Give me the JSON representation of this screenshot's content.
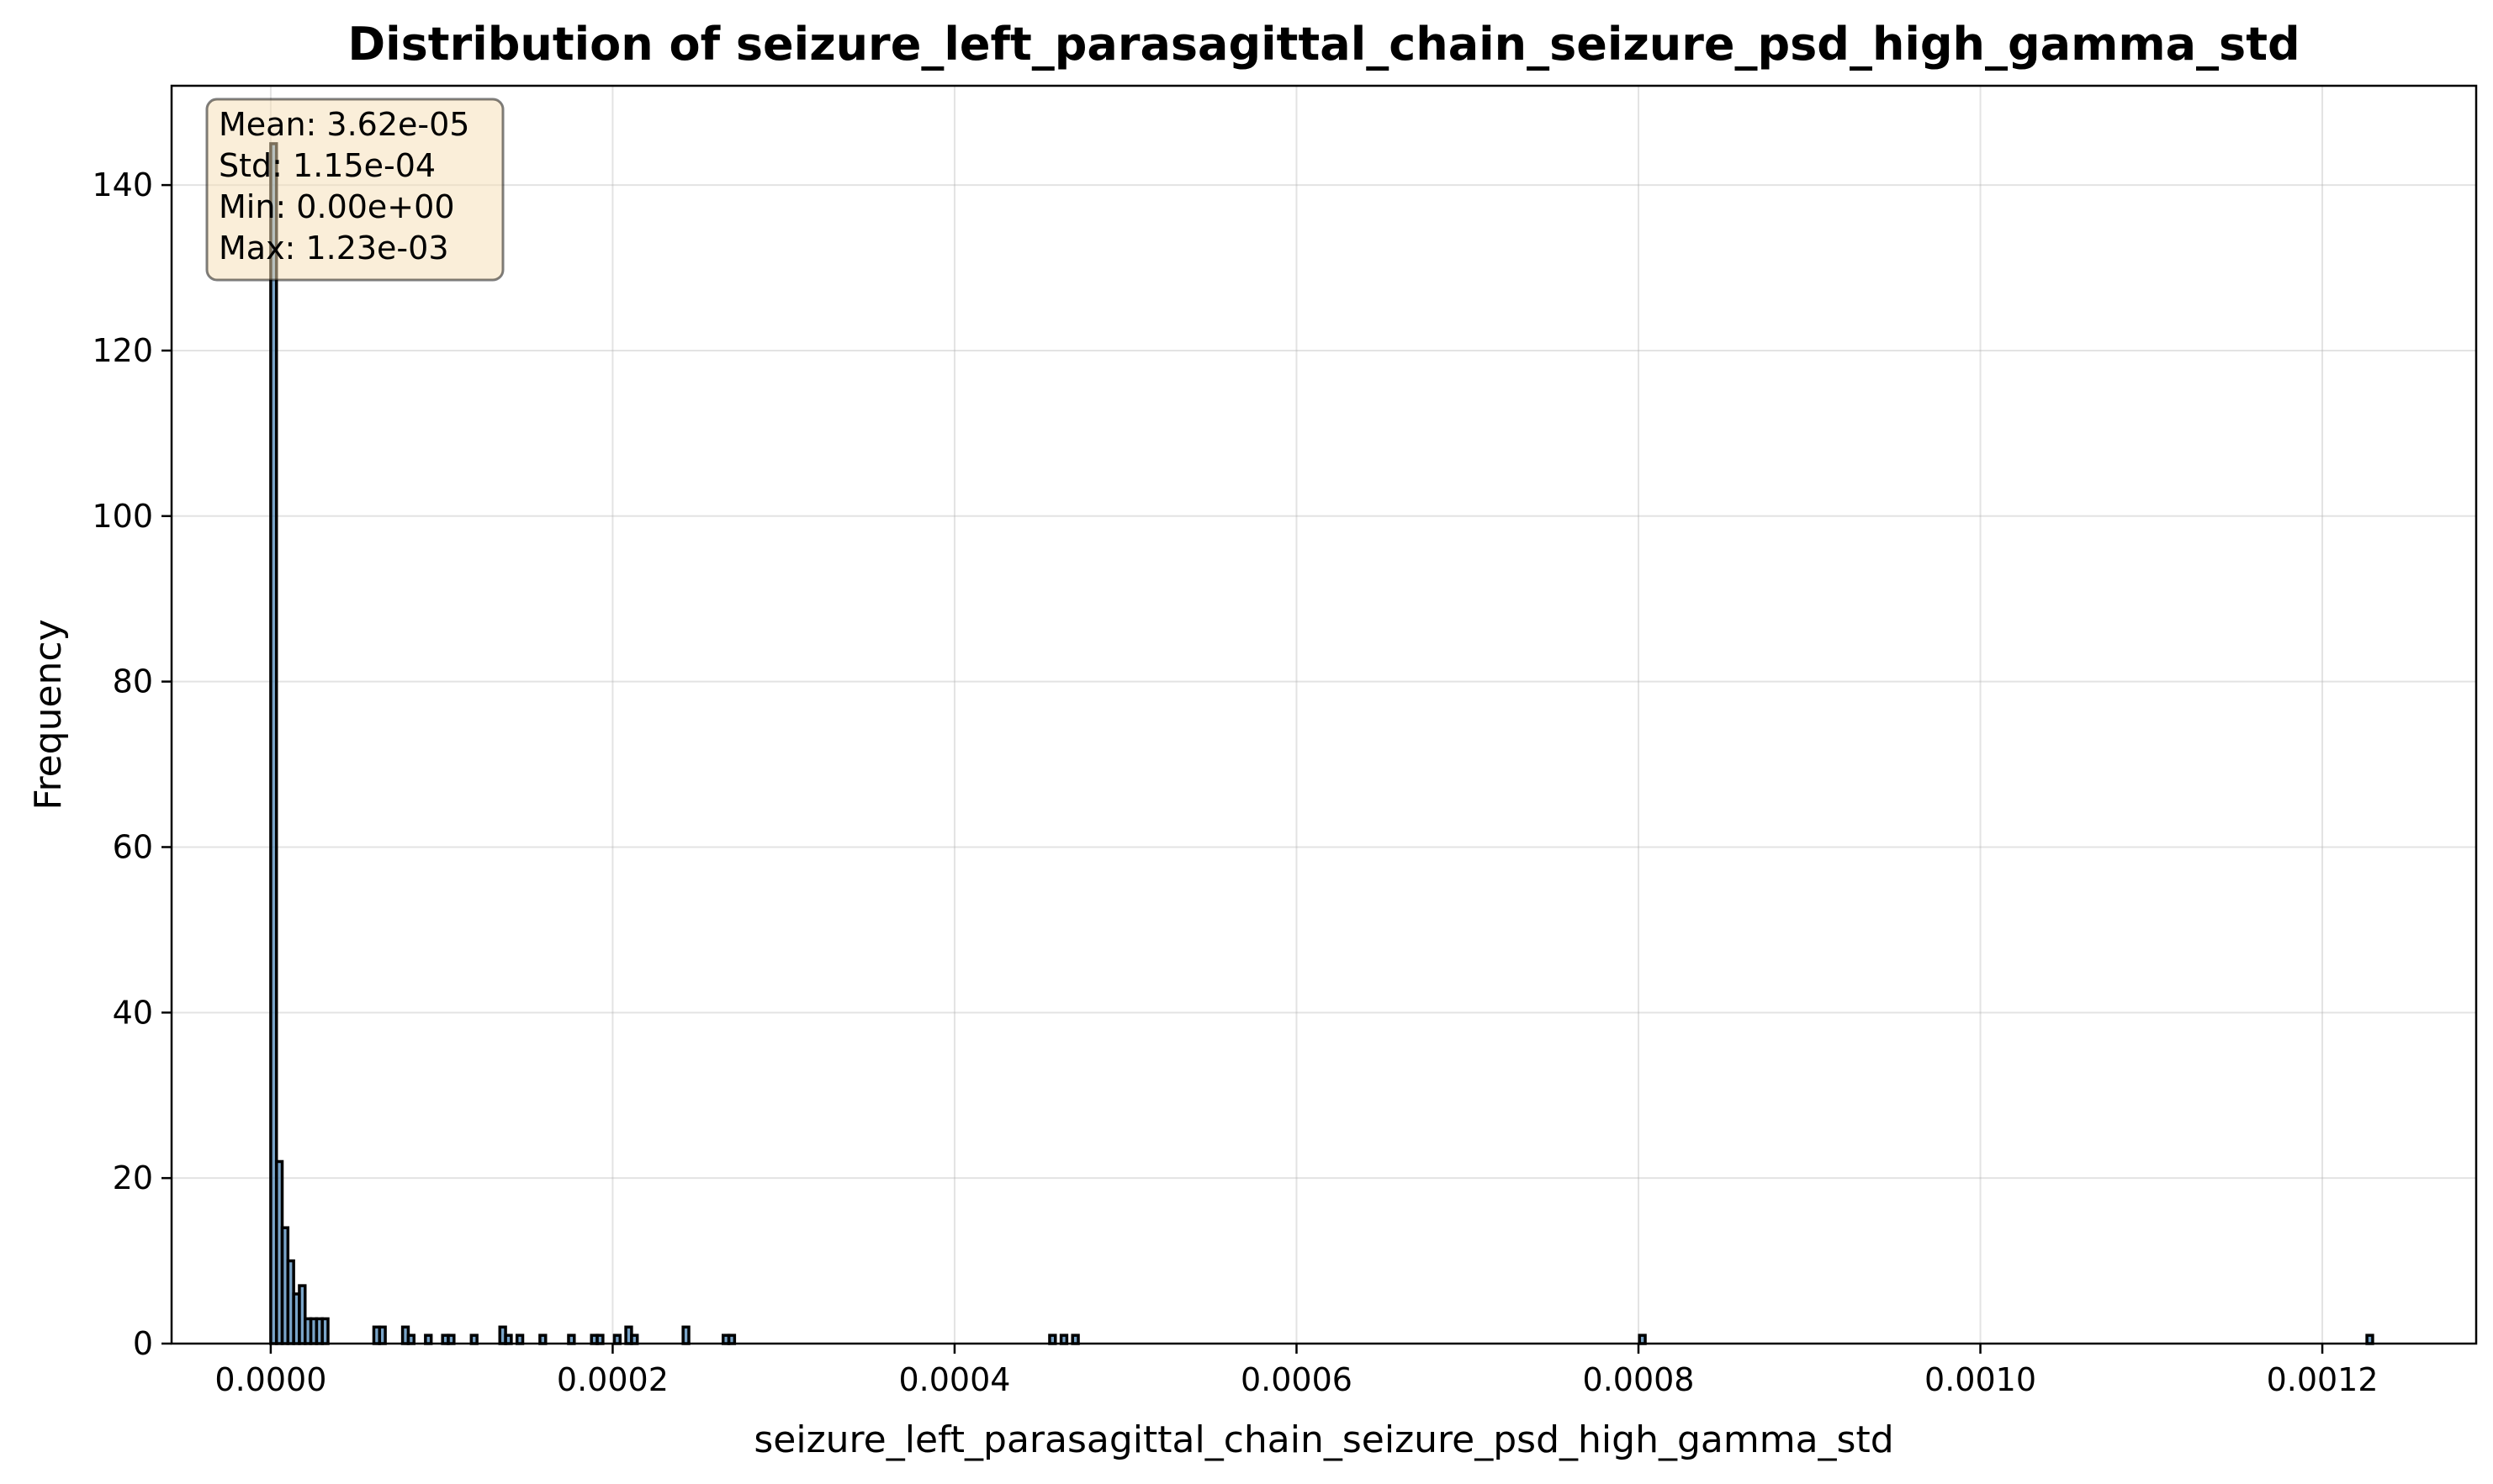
{
  "chart_data": {
    "type": "bar",
    "title": "Distribution of seizure_left_parasagittal_chain_seizure_psd_high_gamma_std",
    "xlabel": "seizure_left_parasagittal_chain_seizure_psd_high_gamma_std",
    "ylabel": "Frequency",
    "xlim": [
      -5.8e-05,
      0.00129
    ],
    "ylim": [
      0,
      152
    ],
    "xticks": [
      0.0,
      0.0002,
      0.0004,
      0.0006,
      0.0008,
      0.001,
      0.0012
    ],
    "xtick_labels": [
      "0.0000",
      "0.0002",
      "0.0004",
      "0.0006",
      "0.0008",
      "0.0010",
      "0.0012"
    ],
    "yticks": [
      0,
      20,
      40,
      60,
      80,
      100,
      120,
      140
    ],
    "ytick_labels": [
      "0",
      "20",
      "40",
      "60",
      "80",
      "100",
      "120",
      "140"
    ],
    "grid": true,
    "bin_width": 3.35e-06,
    "bins_start": [
      0.0,
      3.35e-06,
      6.7e-06,
      1.005e-05,
      1.34e-05,
      1.675e-05,
      2.01e-05,
      2.345e-05,
      2.68e-05,
      3.015e-05,
      6.03e-05,
      6.365e-05,
      7.71e-05,
      8.045e-05,
      9.05e-05,
      0.0001005,
      0.00010385,
      0.0001173,
      0.000134,
      0.00013735,
      0.00014405,
      0.00015745,
      0.0001742,
      0.0001876,
      0.00019095,
      0.000201,
      0.0002077,
      0.00021105,
      0.0002412,
      0.0002646,
      0.00026795,
      0.0004556,
      0.0004623,
      0.000469,
      0.0008006,
      0.0012261
    ],
    "values": [
      145,
      22,
      14,
      10,
      6,
      7,
      3,
      3,
      3,
      3,
      2,
      2,
      2,
      1,
      1,
      1,
      1,
      1,
      2,
      1,
      1,
      1,
      1,
      1,
      1,
      1,
      2,
      1,
      2,
      1,
      1,
      1,
      1,
      1,
      1,
      1
    ],
    "stats_box": {
      "position": "top-left",
      "lines": [
        "Mean: 3.62e-05",
        "Std: 1.15e-04",
        "Min: 0.00e+00",
        "Max: 1.23e-03"
      ]
    },
    "colors": {
      "bar_fill": "#4682b4",
      "bar_edge": "#000000",
      "stats_box_fill": "#f5deb3",
      "stats_box_edge": "#000000"
    }
  }
}
